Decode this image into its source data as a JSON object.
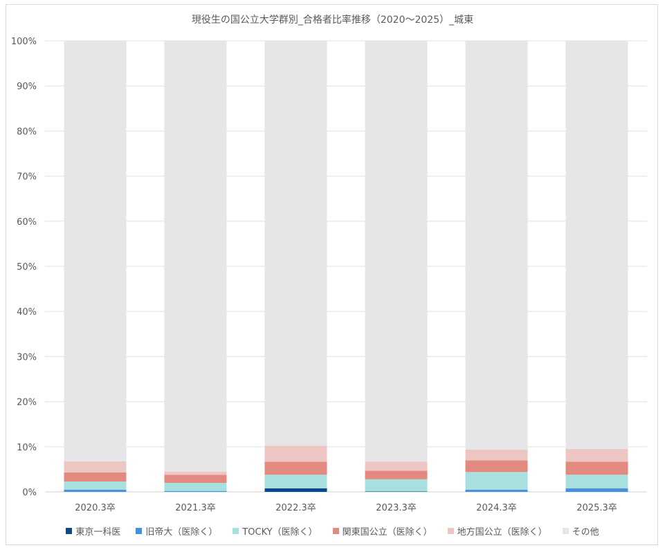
{
  "chart_data": {
    "type": "bar",
    "stacked": true,
    "title": "現役生の国公立大学群別_合格者比率推移（2020～2025）_城東",
    "categories": [
      "2020.3卒",
      "2021.3卒",
      "2022.3卒",
      "2023.3卒",
      "2024.3卒",
      "2025.3卒"
    ],
    "ylim": [
      0,
      100
    ],
    "yticks": [
      "0%",
      "10%",
      "20%",
      "30%",
      "40%",
      "50%",
      "60%",
      "70%",
      "80%",
      "90%",
      "100%"
    ],
    "grid": true,
    "legend_position": "bottom",
    "series": [
      {
        "name": "東京一科医",
        "color": "#0b4a8a",
        "values": [
          0.0,
          0.0,
          0.8,
          0.1,
          0.0,
          0.0
        ]
      },
      {
        "name": "旧帝大（医除く）",
        "color": "#4a90d9",
        "values": [
          0.5,
          0.2,
          0.0,
          0.0,
          0.5,
          0.8
        ]
      },
      {
        "name": "TOCKY（医除く）",
        "color": "#a8e0e0",
        "values": [
          1.8,
          1.8,
          3.0,
          2.7,
          3.9,
          3.0
        ]
      },
      {
        "name": "関東国公立（医除く）",
        "color": "#e38a80",
        "values": [
          2.0,
          1.8,
          2.9,
          1.9,
          2.6,
          2.9
        ]
      },
      {
        "name": "地方国公立（医除く）",
        "color": "#edc5c3",
        "values": [
          2.5,
          0.7,
          3.5,
          2.0,
          2.4,
          2.8
        ]
      },
      {
        "name": "その他",
        "color": "#e6e6e8",
        "values": [
          93.2,
          95.5,
          89.8,
          93.3,
          90.6,
          90.5
        ]
      }
    ]
  }
}
